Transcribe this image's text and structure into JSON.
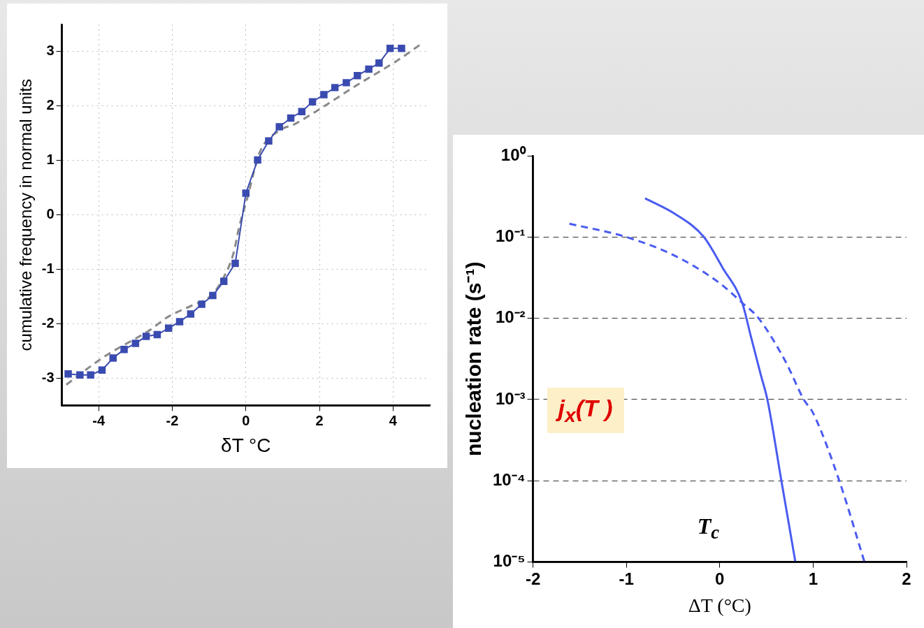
{
  "chart_data": [
    {
      "type": "line",
      "xlabel": "δT °C",
      "ylabel": "cumulative frequency in normal units",
      "xlim": [
        -5,
        5
      ],
      "xticks": [
        -4,
        -2,
        0,
        2,
        4
      ],
      "ylim": [
        -3.5,
        3.5
      ],
      "yticks": [
        -3,
        -2,
        -1,
        0,
        1,
        2,
        3
      ],
      "grid": true,
      "legend": false,
      "series": [
        {
          "color": "#3a4bb0",
          "marker": "square",
          "line_style": "solid",
          "x": [
            -4.83,
            -4.51,
            -4.22,
            -3.91,
            -3.61,
            -3.31,
            -3.0,
            -2.71,
            -2.41,
            -2.1,
            -1.8,
            -1.5,
            -1.2,
            -0.9,
            -0.6,
            -0.29,
            0.0,
            0.32,
            0.62,
            0.91,
            1.22,
            1.52,
            1.81,
            2.12,
            2.42,
            2.73,
            3.03,
            3.34,
            3.62,
            3.92,
            4.23
          ],
          "values": [
            -2.92,
            -2.94,
            -2.94,
            -2.85,
            -2.63,
            -2.47,
            -2.36,
            -2.23,
            -2.2,
            -2.08,
            -1.96,
            -1.82,
            -1.64,
            -1.48,
            -1.22,
            -0.89,
            0.4,
            1.01,
            1.36,
            1.62,
            1.78,
            1.9,
            2.08,
            2.21,
            2.34,
            2.43,
            2.56,
            2.68,
            2.79,
            3.06,
            3.06
          ]
        },
        {
          "type": "line",
          "color": "#8a8a8a",
          "marker": "none",
          "line_style": "dashed",
          "x": [
            -4.88,
            -4.26,
            -3.75,
            -3.13,
            -2.62,
            -2.11,
            -1.49,
            -0.93,
            -0.59,
            -0.33,
            -0.19,
            0.03,
            0.37,
            0.88,
            1.33,
            1.9,
            3.03,
            4.1,
            4.72
          ],
          "values": [
            -3.12,
            -2.8,
            -2.56,
            -2.32,
            -2.12,
            -1.87,
            -1.67,
            -1.47,
            -1.13,
            -0.69,
            -0.24,
            0.29,
            1.14,
            1.54,
            1.67,
            1.9,
            2.39,
            2.83,
            3.12
          ]
        }
      ]
    },
    {
      "type": "line",
      "xlabel": "ΔT (°C)",
      "ylabel": "nucleation rate (s⁻¹)",
      "log": "y",
      "xlim": [
        -2,
        2
      ],
      "xticks": [
        -2,
        -1,
        0,
        1,
        2
      ],
      "ylim": [
        1e-05,
        1
      ],
      "yticks": [
        {
          "value": 1e-05,
          "label": "10⁻⁵"
        },
        {
          "value": 0.0001,
          "label": "10⁻⁴"
        },
        {
          "value": 0.001,
          "label": "10⁻³"
        },
        {
          "value": 0.01,
          "label": "10⁻²"
        },
        {
          "value": 0.1,
          "label": "10⁻¹"
        },
        {
          "value": 1,
          "label": "10⁰"
        }
      ],
      "grid": "y",
      "legend": false,
      "annotations": [
        "j$_{x}$(T )",
        "T$_{c}$"
      ],
      "series": [
        {
          "color": "#4a5cf0",
          "line_style": "solid",
          "marker": "none",
          "x": [
            -0.8,
            -0.47,
            -0.17,
            0.03,
            0.24,
            0.33,
            0.44,
            0.51,
            0.66,
            0.81
          ],
          "values": [
            0.3,
            0.19,
            0.1,
            0.042,
            0.0155,
            0.0062,
            0.002,
            0.001,
            0.0001,
            1e-05
          ]
        },
        {
          "color": "#4a5cf0",
          "line_style": "dashed",
          "marker": "none",
          "x": [
            -1.61,
            -1.0,
            -0.47,
            0,
            0.24,
            0.41,
            0.7,
            0.9,
            1.0,
            1.28,
            1.55
          ],
          "values": [
            0.146,
            0.1,
            0.058,
            0.027,
            0.0155,
            0.0102,
            0.003,
            0.001,
            0.00068,
            0.0001,
            1e-05
          ]
        }
      ]
    }
  ]
}
